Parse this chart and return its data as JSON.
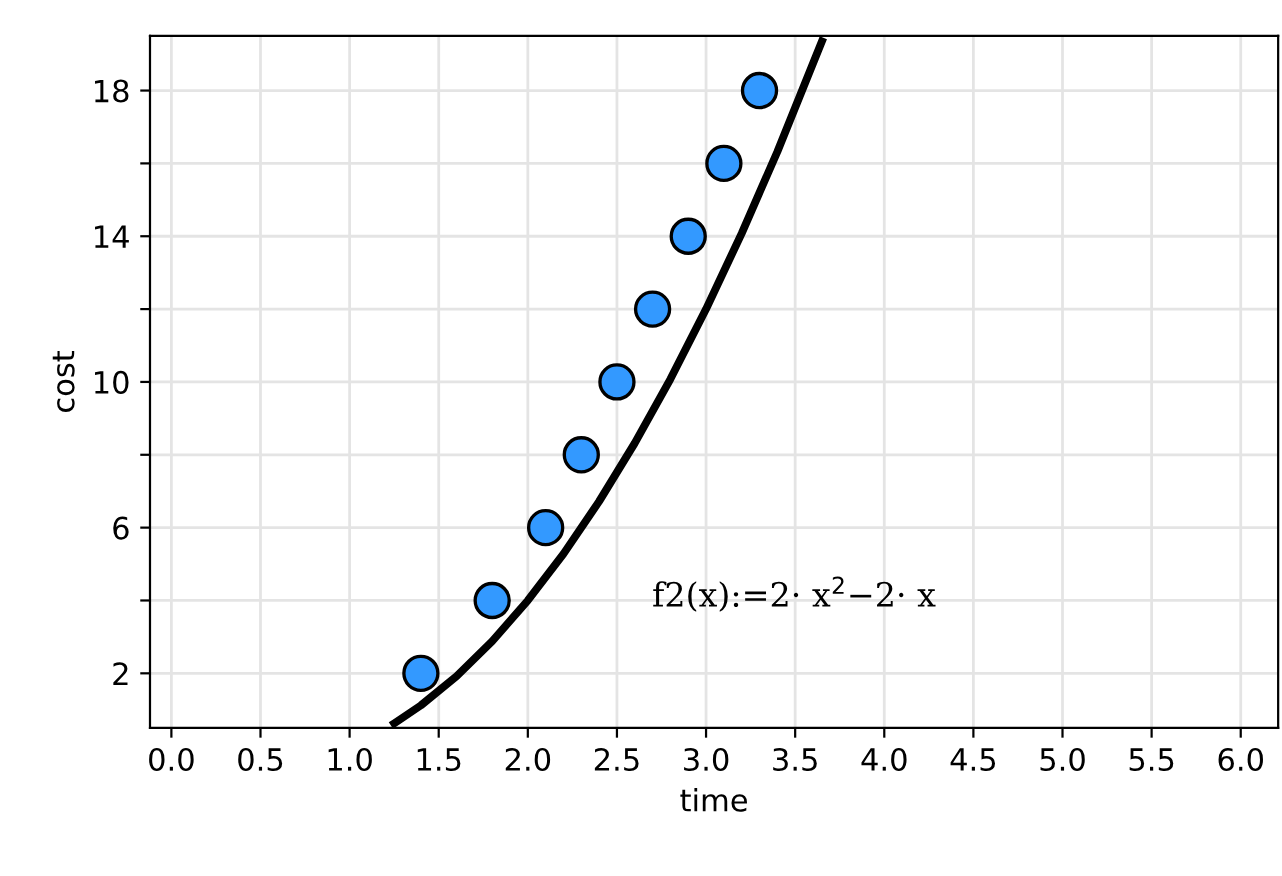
{
  "chart_data": {
    "type": "scatter",
    "xlabel": "time",
    "ylabel": "cost",
    "series": [
      {
        "color": "#3399ff",
        "marker": "circle",
        "x": [
          1.4,
          1.8,
          2.1,
          2.3,
          2.5,
          2.7,
          2.9,
          3.1,
          3.3
        ],
        "values": [
          2,
          4,
          6,
          8,
          10,
          12,
          14,
          16,
          18
        ]
      },
      {
        "type": "line",
        "marker": "none",
        "color": "#000000",
        "x": [
          1.25,
          1.4,
          1.6,
          1.8,
          2.0,
          2.2,
          2.4,
          2.6,
          2.8,
          3.0,
          3.2,
          3.4,
          3.65
        ],
        "values": [
          0.625,
          1.12,
          1.92,
          2.88,
          4.0,
          5.28,
          6.72,
          8.32,
          10.08,
          12.0,
          14.08,
          16.32,
          19.35
        ]
      }
    ],
    "annotations": [
      "f2(x):=2· x$^{2}$−2· x"
    ],
    "xlim": [
      -0.12,
      6.21
    ],
    "ylim": [
      0.5,
      19.5
    ],
    "xticks": [
      {
        "value": 0,
        "label": "0.0"
      },
      {
        "value": 0.5,
        "label": "0.5"
      },
      {
        "value": 1,
        "label": "1.0"
      },
      {
        "value": 1.5,
        "label": "1.5"
      },
      {
        "value": 2,
        "label": "2.0"
      },
      {
        "value": 2.5,
        "label": "2.5"
      },
      {
        "value": 3,
        "label": "3.0"
      },
      {
        "value": 3.5,
        "label": "3.5"
      },
      {
        "value": 4,
        "label": "4.0"
      },
      {
        "value": 4.5,
        "label": "4.5"
      },
      {
        "value": 5,
        "label": "5.0"
      },
      {
        "value": 5.5,
        "label": "5.5"
      },
      {
        "value": 6,
        "label": "6.0"
      }
    ],
    "yticks": [
      2,
      {
        "value": 4,
        "label": null
      },
      6,
      {
        "value": 8,
        "label": null
      },
      10,
      {
        "value": 12,
        "label": null
      },
      14,
      {
        "value": 16,
        "label": null
      },
      18
    ],
    "grid": true,
    "line_style": "solid"
  }
}
